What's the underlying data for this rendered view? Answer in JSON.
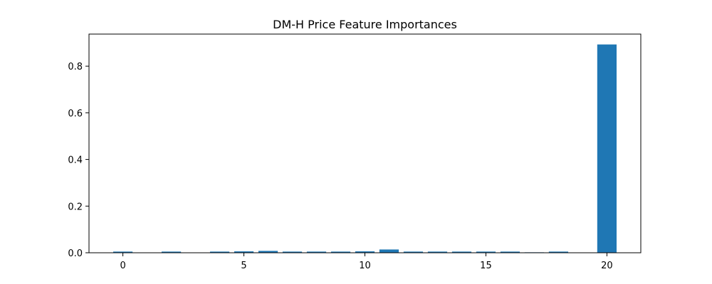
{
  "chart_data": {
    "type": "bar",
    "title": "DM-H Price Feature Importances",
    "xlabel": "",
    "ylabel": "",
    "categories": [
      0,
      1,
      2,
      3,
      4,
      5,
      6,
      7,
      8,
      9,
      10,
      11,
      12,
      13,
      14,
      15,
      16,
      17,
      18,
      19,
      20
    ],
    "values": [
      0.005,
      0.0,
      0.005,
      0.0,
      0.005,
      0.006,
      0.008,
      0.005,
      0.005,
      0.005,
      0.006,
      0.014,
      0.005,
      0.005,
      0.005,
      0.005,
      0.005,
      0.002,
      0.005,
      0.0,
      0.893
    ],
    "xlim": [
      -1.4,
      21.4
    ],
    "ylim": [
      0,
      0.9375
    ],
    "xticks": [
      0,
      5,
      10,
      15,
      20
    ],
    "xtick_labels": [
      "0",
      "5",
      "10",
      "15",
      "20"
    ],
    "yticks": [
      0.0,
      0.2,
      0.4,
      0.6,
      0.8
    ],
    "ytick_labels": [
      "0.0",
      "0.2",
      "0.4",
      "0.6",
      "0.8"
    ],
    "bar_color": "#1f77b4",
    "grid": false,
    "legend": "none"
  }
}
